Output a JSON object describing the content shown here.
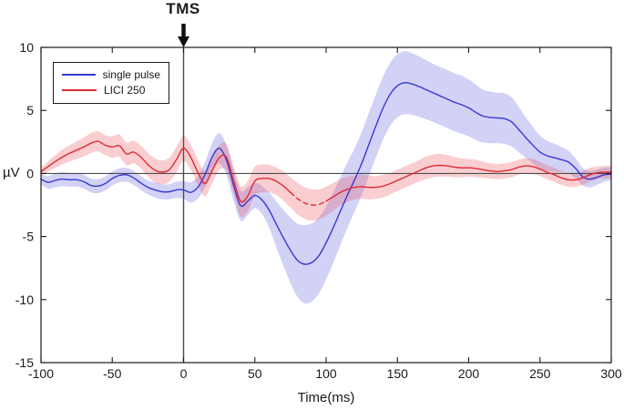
{
  "annotation": {
    "label": "TMS"
  },
  "colors": {
    "background": "#ffffff",
    "axis": "#1a1a1a",
    "refline": "#4d4d4d",
    "arrow": "#111111",
    "single_pulse_line": "#3838d2",
    "single_pulse_band": "rgba(75,75,225,0.25)",
    "lici_line": "#e02b35",
    "lici_band": "rgba(235,60,70,0.25)"
  },
  "chart_data": {
    "type": "line",
    "title": "",
    "xlabel": "Time(ms)",
    "ylabel": "µV",
    "xlim": [
      -100,
      300
    ],
    "ylim": [
      -15,
      10
    ],
    "xticks": [
      -100,
      -50,
      0,
      50,
      100,
      150,
      200,
      250,
      300
    ],
    "yticks": [
      -15,
      -10,
      -5,
      0,
      5,
      10
    ],
    "grid": false,
    "legend_position": "top-left",
    "annotations": [
      {
        "type": "vline",
        "x": 0,
        "label": "TMS"
      },
      {
        "type": "hline",
        "y": 0
      }
    ],
    "x": [
      -100,
      -95,
      -90,
      -85,
      -80,
      -75,
      -70,
      -65,
      -60,
      -55,
      -50,
      -45,
      -40,
      -35,
      -30,
      -25,
      -20,
      -15,
      -10,
      -5,
      0,
      5,
      10,
      15,
      20,
      25,
      30,
      35,
      40,
      45,
      50,
      55,
      60,
      65,
      70,
      75,
      80,
      85,
      90,
      95,
      100,
      105,
      110,
      115,
      120,
      125,
      130,
      135,
      140,
      145,
      150,
      155,
      160,
      165,
      170,
      175,
      180,
      185,
      190,
      195,
      200,
      205,
      210,
      215,
      220,
      225,
      230,
      235,
      240,
      245,
      250,
      255,
      260,
      265,
      270,
      275,
      280,
      285,
      290,
      295,
      300
    ],
    "series": [
      {
        "name": "single pulse",
        "color": "#3838d2",
        "band_fill": "rgba(75,75,225,0.25)",
        "dashed_segments": [],
        "values": [
          -0.45,
          -0.7,
          -0.55,
          -0.45,
          -0.5,
          -0.5,
          -0.65,
          -0.95,
          -1.0,
          -0.8,
          -0.4,
          -0.15,
          -0.1,
          -0.35,
          -0.75,
          -1.1,
          -1.3,
          -1.45,
          -1.45,
          -1.3,
          -1.3,
          -1.5,
          -1.1,
          -0.1,
          1.3,
          2.0,
          1.1,
          -0.9,
          -2.55,
          -2.2,
          -1.75,
          -2.1,
          -2.9,
          -4.0,
          -5.1,
          -6.1,
          -6.9,
          -7.2,
          -7.05,
          -6.5,
          -5.5,
          -4.3,
          -3.0,
          -1.7,
          -0.5,
          0.8,
          2.3,
          3.8,
          5.2,
          6.3,
          6.95,
          7.2,
          7.1,
          6.9,
          6.65,
          6.4,
          6.15,
          5.9,
          5.65,
          5.45,
          5.2,
          4.85,
          4.55,
          4.45,
          4.4,
          4.35,
          4.1,
          3.5,
          2.85,
          2.25,
          1.7,
          1.4,
          1.25,
          1.1,
          0.9,
          0.4,
          -0.25,
          -0.45,
          -0.3,
          -0.1,
          -0.05
        ],
        "band_halfwidth": [
          0.4,
          0.5,
          0.55,
          0.55,
          0.55,
          0.55,
          0.55,
          0.55,
          0.55,
          0.55,
          0.55,
          0.55,
          0.55,
          0.55,
          0.55,
          0.55,
          0.6,
          0.6,
          0.6,
          0.65,
          0.7,
          0.8,
          0.9,
          1.0,
          1.1,
          1.2,
          1.2,
          1.2,
          1.2,
          1.1,
          1.0,
          1.1,
          1.4,
          1.8,
          2.2,
          2.6,
          2.9,
          3.1,
          3.1,
          3.0,
          2.9,
          2.8,
          2.7,
          2.6,
          2.5,
          2.5,
          2.5,
          2.5,
          2.5,
          2.5,
          2.5,
          2.5,
          2.45,
          2.4,
          2.35,
          2.3,
          2.3,
          2.3,
          2.3,
          2.3,
          2.25,
          2.2,
          2.1,
          2.05,
          2.0,
          2.0,
          1.95,
          1.8,
          1.6,
          1.45,
          1.3,
          1.2,
          1.1,
          1.0,
          0.9,
          0.8,
          0.7,
          0.65,
          0.6,
          0.55,
          0.5
        ]
      },
      {
        "name": "LICI 250",
        "color": "#e02b35",
        "band_fill": "rgba(235,60,70,0.25)",
        "dashed_segments": [
          [
            75,
            100
          ]
        ],
        "values": [
          0.15,
          0.55,
          0.95,
          1.3,
          1.6,
          1.85,
          2.1,
          2.4,
          2.55,
          2.25,
          2.1,
          2.2,
          1.55,
          1.7,
          1.3,
          0.7,
          0.25,
          0.1,
          0.3,
          1.1,
          2.0,
          1.3,
          0.1,
          -0.8,
          0.2,
          1.25,
          1.3,
          -0.5,
          -2.2,
          -1.8,
          -0.6,
          -0.4,
          -0.4,
          -0.6,
          -1.0,
          -1.5,
          -2.0,
          -2.35,
          -2.5,
          -2.45,
          -2.2,
          -1.85,
          -1.5,
          -1.25,
          -1.1,
          -1.05,
          -1.1,
          -1.1,
          -1.0,
          -0.8,
          -0.55,
          -0.3,
          -0.05,
          0.2,
          0.45,
          0.6,
          0.65,
          0.6,
          0.5,
          0.45,
          0.45,
          0.4,
          0.3,
          0.2,
          0.15,
          0.2,
          0.3,
          0.5,
          0.6,
          0.55,
          0.35,
          0.1,
          -0.1,
          -0.35,
          -0.5,
          -0.5,
          -0.35,
          -0.1,
          0.05,
          0.1,
          0.1
        ],
        "band_halfwidth": [
          0.3,
          0.4,
          0.5,
          0.6,
          0.65,
          0.7,
          0.75,
          0.8,
          0.8,
          0.8,
          0.85,
          0.9,
          0.9,
          0.9,
          0.9,
          0.95,
          0.95,
          0.95,
          0.95,
          1.0,
          1.0,
          1.0,
          1.0,
          1.0,
          1.0,
          1.0,
          1.05,
          1.1,
          1.2,
          1.2,
          1.15,
          1.1,
          1.1,
          1.1,
          1.15,
          1.2,
          1.25,
          1.25,
          1.25,
          1.2,
          1.15,
          1.1,
          1.05,
          1.0,
          0.95,
          0.95,
          0.95,
          0.9,
          0.9,
          0.85,
          0.85,
          0.85,
          0.85,
          0.85,
          0.9,
          0.9,
          0.9,
          0.85,
          0.8,
          0.75,
          0.7,
          0.7,
          0.65,
          0.6,
          0.6,
          0.6,
          0.6,
          0.6,
          0.6,
          0.6,
          0.55,
          0.55,
          0.55,
          0.55,
          0.55,
          0.55,
          0.55,
          0.55,
          0.5,
          0.5,
          0.5
        ]
      }
    ]
  }
}
